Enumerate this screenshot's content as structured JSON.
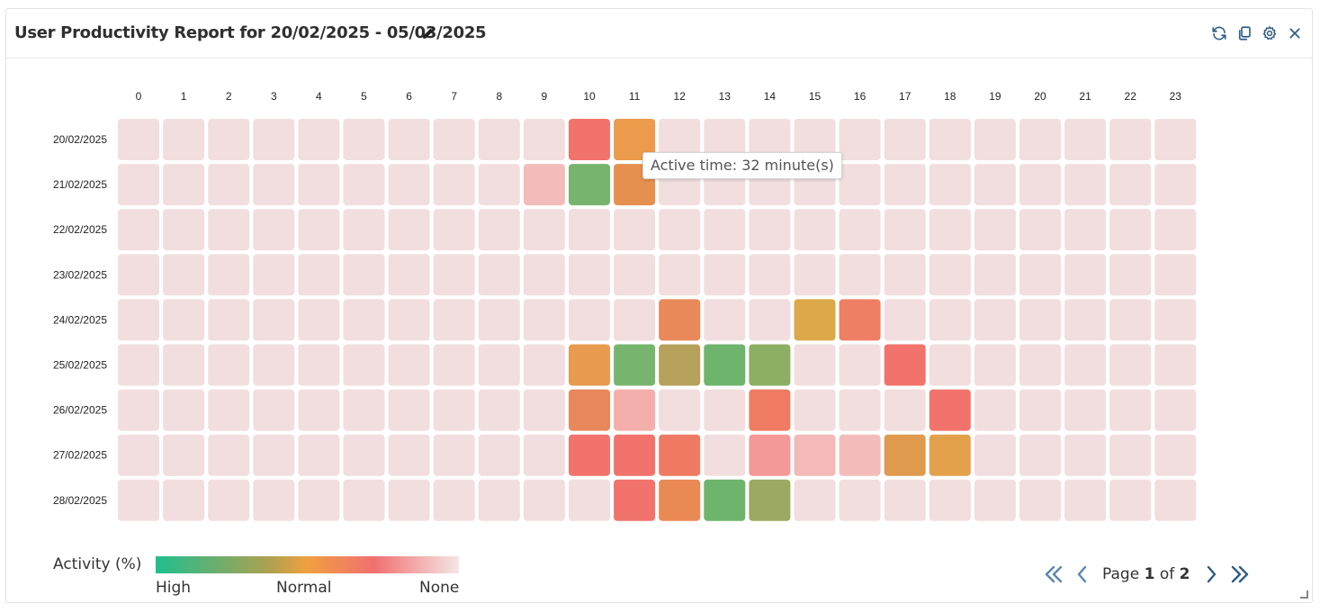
{
  "header": {
    "title": "User Productivity Report for 20/02/2025 - 05/03/2025",
    "icons": [
      "edit-icon",
      "refresh-icon",
      "copy-icon",
      "settings-icon",
      "close-icon"
    ]
  },
  "chart_data": {
    "type": "heatmap",
    "x": [
      "0",
      "1",
      "2",
      "3",
      "4",
      "5",
      "6",
      "7",
      "8",
      "9",
      "10",
      "11",
      "12",
      "13",
      "14",
      "15",
      "16",
      "17",
      "18",
      "19",
      "20",
      "21",
      "22",
      "23"
    ],
    "y": [
      "20/02/2025",
      "21/02/2025",
      "22/02/2025",
      "23/02/2025",
      "24/02/2025",
      "25/02/2025",
      "26/02/2025",
      "27/02/2025",
      "28/02/2025"
    ],
    "color_scale": [
      "#1fbf8f",
      "#f0a040",
      "#f07070",
      "#f2dede"
    ],
    "cells": [
      {
        "row": "20/02/2025",
        "col": "10",
        "color": "#f2736b"
      },
      {
        "row": "20/02/2025",
        "col": "11",
        "color": "#ec9a4c"
      },
      {
        "row": "21/02/2025",
        "col": "9",
        "color": "#f3bcba"
      },
      {
        "row": "21/02/2025",
        "col": "10",
        "color": "#77b56f"
      },
      {
        "row": "21/02/2025",
        "col": "11",
        "color": "#e6904f"
      },
      {
        "row": "24/02/2025",
        "col": "12",
        "color": "#e98858"
      },
      {
        "row": "24/02/2025",
        "col": "15",
        "color": "#dca848"
      },
      {
        "row": "24/02/2025",
        "col": "16",
        "color": "#ef7f64"
      },
      {
        "row": "25/02/2025",
        "col": "10",
        "color": "#e89a4f"
      },
      {
        "row": "25/02/2025",
        "col": "11",
        "color": "#77b56f"
      },
      {
        "row": "25/02/2025",
        "col": "12",
        "color": "#b6a15a"
      },
      {
        "row": "25/02/2025",
        "col": "13",
        "color": "#6fb46c"
      },
      {
        "row": "25/02/2025",
        "col": "14",
        "color": "#8daf63"
      },
      {
        "row": "25/02/2025",
        "col": "17",
        "color": "#f2736b"
      },
      {
        "row": "26/02/2025",
        "col": "10",
        "color": "#e8885a"
      },
      {
        "row": "26/02/2025",
        "col": "11",
        "color": "#f4aeac"
      },
      {
        "row": "26/02/2025",
        "col": "14",
        "color": "#ef7b62"
      },
      {
        "row": "26/02/2025",
        "col": "18",
        "color": "#f2736b"
      },
      {
        "row": "27/02/2025",
        "col": "10",
        "color": "#f2736b"
      },
      {
        "row": "27/02/2025",
        "col": "11",
        "color": "#f2736b"
      },
      {
        "row": "27/02/2025",
        "col": "12",
        "color": "#ef7a63"
      },
      {
        "row": "27/02/2025",
        "col": "14",
        "color": "#f49997"
      },
      {
        "row": "27/02/2025",
        "col": "15",
        "color": "#f4b9b8"
      },
      {
        "row": "27/02/2025",
        "col": "16",
        "color": "#f3bcba"
      },
      {
        "row": "27/02/2025",
        "col": "17",
        "color": "#df9a4e"
      },
      {
        "row": "27/02/2025",
        "col": "18",
        "color": "#e3a14c"
      },
      {
        "row": "28/02/2025",
        "col": "11",
        "color": "#f2736b"
      },
      {
        "row": "28/02/2025",
        "col": "12",
        "color": "#e98a55"
      },
      {
        "row": "28/02/2025",
        "col": "13",
        "color": "#6fb46c"
      },
      {
        "row": "28/02/2025",
        "col": "14",
        "color": "#9ca962"
      }
    ],
    "legend": {
      "title": "Activity (%)",
      "labels": [
        "High",
        "Normal",
        "None"
      ]
    }
  },
  "tooltip": {
    "text": "Active time: 32 minute(s)"
  },
  "pager": {
    "page_prefix": "Page",
    "current": "1",
    "of": "of",
    "total": "2"
  }
}
